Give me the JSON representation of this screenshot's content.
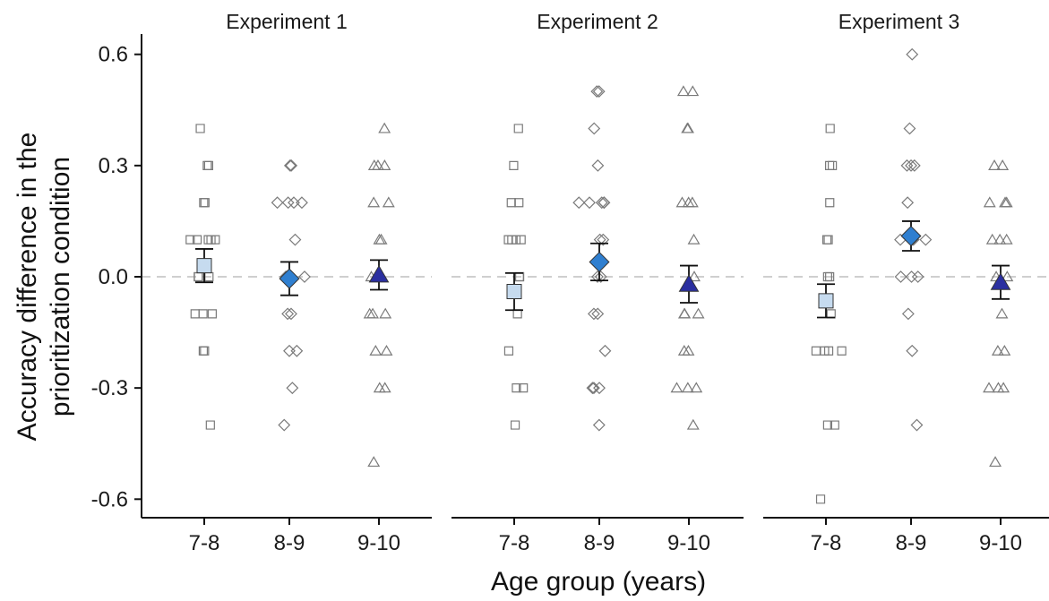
{
  "chart_data": {
    "type": "scatter",
    "ylabel_lines": [
      "Accuracy difference in the",
      "prioritization condition"
    ],
    "xlabel": "Age group (years)",
    "ylim": [
      -0.65,
      0.65
    ],
    "y_ticks": [
      "-0.6",
      "-0.3",
      "0.0",
      "0.3",
      "0.6"
    ],
    "y_tick_values": [
      -0.6,
      -0.3,
      0.0,
      0.3,
      0.6
    ],
    "categories": [
      "7-8",
      "8-9",
      "9-10"
    ],
    "reference_line": 0,
    "grid": false,
    "legend": "none",
    "group_styles": [
      {
        "group": "7-8",
        "shape": "square",
        "fill": "#c6dbef"
      },
      {
        "group": "8-9",
        "shape": "diamond",
        "fill": "#2f7fd0"
      },
      {
        "group": "9-10",
        "shape": "triangle",
        "fill": "#2b2fa0"
      }
    ],
    "panels": [
      {
        "title": "Experiment 1",
        "points": {
          "7-8": [
            0.4,
            0.3,
            0.3,
            0.2,
            0.2,
            0.1,
            0.1,
            0.1,
            0.1,
            0.1,
            0.0,
            0.0,
            0.0,
            -0.1,
            -0.1,
            -0.1,
            -0.2,
            -0.2,
            -0.4
          ],
          "8-9": [
            0.3,
            0.3,
            0.2,
            0.2,
            0.2,
            0.2,
            0.1,
            0.0,
            0.0,
            0.0,
            0.0,
            -0.1,
            -0.1,
            -0.2,
            -0.2,
            -0.3,
            -0.4
          ],
          "9-10": [
            0.4,
            0.3,
            0.3,
            0.3,
            0.2,
            0.2,
            0.1,
            0.1,
            0.0,
            0.0,
            0.0,
            -0.1,
            -0.1,
            -0.1,
            -0.2,
            -0.2,
            -0.3,
            -0.3,
            -0.5
          ]
        },
        "means": {
          "7-8": 0.03,
          "8-9": -0.005,
          "9-10": 0.005
        },
        "errors": {
          "7-8": 0.045,
          "8-9": 0.045,
          "9-10": 0.04
        }
      },
      {
        "title": "Experiment 2",
        "points": {
          "7-8": [
            0.4,
            0.3,
            0.2,
            0.2,
            0.1,
            0.1,
            0.1,
            0.1,
            0.0,
            0.0,
            -0.1,
            -0.2,
            -0.3,
            -0.3,
            -0.4
          ],
          "8-9": [
            0.5,
            0.5,
            0.4,
            0.3,
            0.2,
            0.2,
            0.2,
            0.2,
            0.2,
            0.1,
            0.1,
            0.0,
            0.0,
            -0.1,
            -0.1,
            -0.2,
            -0.3,
            -0.3,
            -0.3,
            -0.4
          ],
          "9-10": [
            0.5,
            0.5,
            0.4,
            0.4,
            0.2,
            0.2,
            0.2,
            0.1,
            0.0,
            -0.1,
            -0.1,
            -0.1,
            -0.2,
            -0.2,
            -0.3,
            -0.3,
            -0.3,
            -0.4
          ]
        },
        "means": {
          "7-8": -0.04,
          "8-9": 0.04,
          "9-10": -0.02
        },
        "errors": {
          "7-8": 0.05,
          "8-9": 0.05,
          "9-10": 0.05
        }
      },
      {
        "title": "Experiment 3",
        "points": {
          "7-8": [
            0.4,
            0.3,
            0.3,
            0.2,
            0.1,
            0.1,
            0.0,
            0.0,
            -0.1,
            -0.2,
            -0.2,
            -0.2,
            -0.2,
            -0.4,
            -0.4,
            -0.6
          ],
          "8-9": [
            0.6,
            0.4,
            0.3,
            0.3,
            0.3,
            0.2,
            0.1,
            0.1,
            0.1,
            0.1,
            0.0,
            0.0,
            0.0,
            -0.1,
            -0.2,
            -0.4
          ],
          "9-10": [
            0.3,
            0.3,
            0.2,
            0.2,
            0.2,
            0.1,
            0.1,
            0.1,
            0.0,
            0.0,
            -0.1,
            -0.2,
            -0.2,
            -0.3,
            -0.3,
            -0.3,
            -0.5
          ]
        },
        "means": {
          "7-8": -0.065,
          "8-9": 0.11,
          "9-10": -0.015
        },
        "errors": {
          "7-8": 0.045,
          "8-9": 0.04,
          "9-10": 0.045
        }
      }
    ]
  }
}
